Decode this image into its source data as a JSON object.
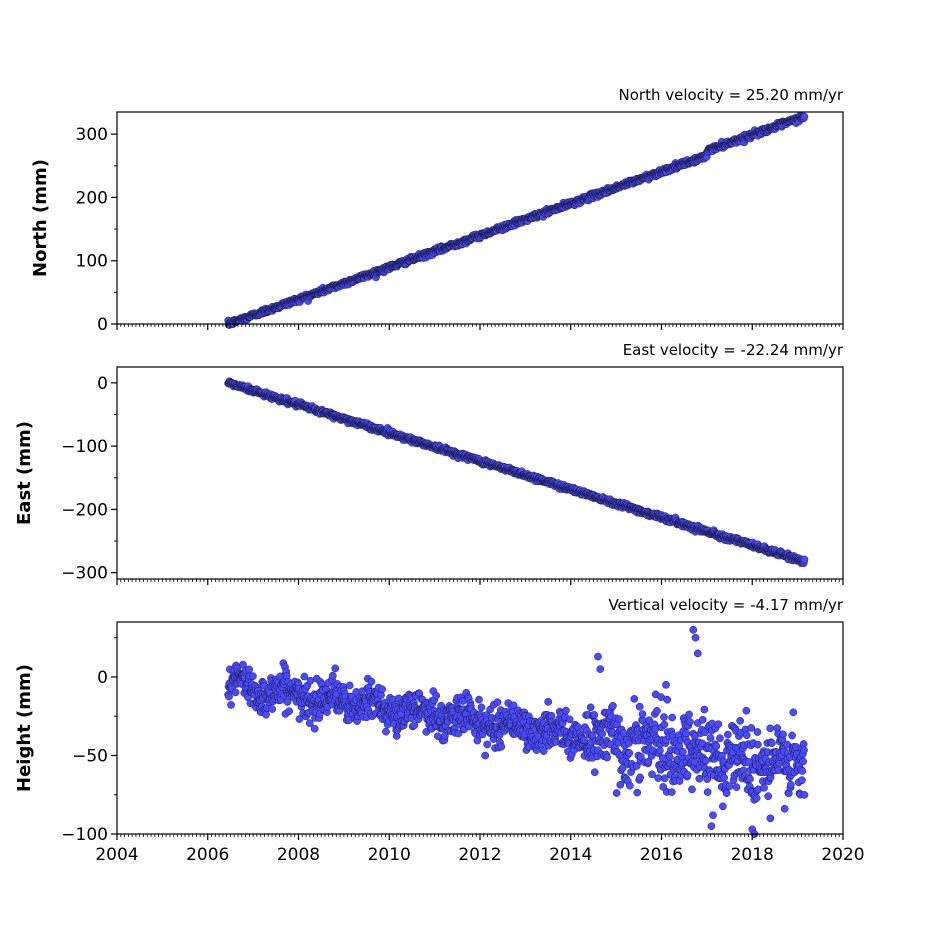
{
  "chart_data": [
    {
      "type": "scatter",
      "title": "North velocity = 25.20 mm/yr",
      "ylabel": "North (mm)",
      "xlim": [
        2004,
        2020
      ],
      "ylim": [
        0,
        335
      ],
      "yticks": [
        0,
        100,
        200,
        300
      ],
      "ytick_labels": [
        "0",
        "100",
        "200",
        "300"
      ],
      "x_tick_labels_shown": false,
      "grid": false,
      "series": [
        {
          "color": "#4a4aff",
          "x_range": [
            2006.45,
            2019.15
          ],
          "trend": {
            "y_at_start": 0,
            "slope_per_year": 25.2
          },
          "jump": {
            "at": 2017.0,
            "offset": 8
          },
          "noise_sd": 2
        }
      ]
    },
    {
      "type": "scatter",
      "title": "East velocity = -22.24 mm/yr",
      "ylabel": "East (mm)",
      "xlim": [
        2004,
        2020
      ],
      "ylim": [
        -310,
        25
      ],
      "yticks": [
        0,
        -100,
        -200,
        -300
      ],
      "ytick_labels": [
        "0",
        "−100",
        "−200",
        "−300"
      ],
      "x_tick_labels_shown": false,
      "grid": false,
      "series": [
        {
          "color": "#4a4aff",
          "x_range": [
            2006.45,
            2019.15
          ],
          "trend": {
            "y_at_start": 0,
            "slope_per_year": -22.24
          },
          "noise_sd": 2
        }
      ]
    },
    {
      "type": "scatter",
      "title": "Vertical velocity = -4.17 mm/yr",
      "ylabel": "Height (mm)",
      "xlim": [
        2004,
        2020
      ],
      "ylim": [
        -100,
        35
      ],
      "yticks": [
        0,
        -50,
        -100
      ],
      "ytick_labels": [
        "0",
        "−50",
        "−100"
      ],
      "xticks": [
        2004,
        2006,
        2008,
        2010,
        2012,
        2014,
        2016,
        2018,
        2020
      ],
      "xtick_labels": [
        "2004",
        "2006",
        "2008",
        "2010",
        "2012",
        "2014",
        "2016",
        "2018",
        "2020"
      ],
      "x_tick_labels_shown": true,
      "grid": false,
      "series": [
        {
          "color": "#4a4aff",
          "x_range": [
            2006.45,
            2019.15
          ],
          "trend": {
            "y_at_start": -5,
            "slope_per_year": -4.17
          },
          "noise_sd_early": 6,
          "noise_sd_late": 12,
          "outliers": [
            {
              "x": 2016.7,
              "y": 30
            },
            {
              "x": 2016.75,
              "y": 25
            },
            {
              "x": 2016.8,
              "y": 15
            },
            {
              "x": 2014.6,
              "y": 13
            },
            {
              "x": 2014.65,
              "y": 5
            },
            {
              "x": 2016.1,
              "y": -5
            },
            {
              "x": 2018.0,
              "y": -97
            },
            {
              "x": 2018.05,
              "y": -100
            },
            {
              "x": 2017.1,
              "y": -95
            },
            {
              "x": 2018.4,
              "y": -90
            }
          ]
        }
      ]
    }
  ]
}
